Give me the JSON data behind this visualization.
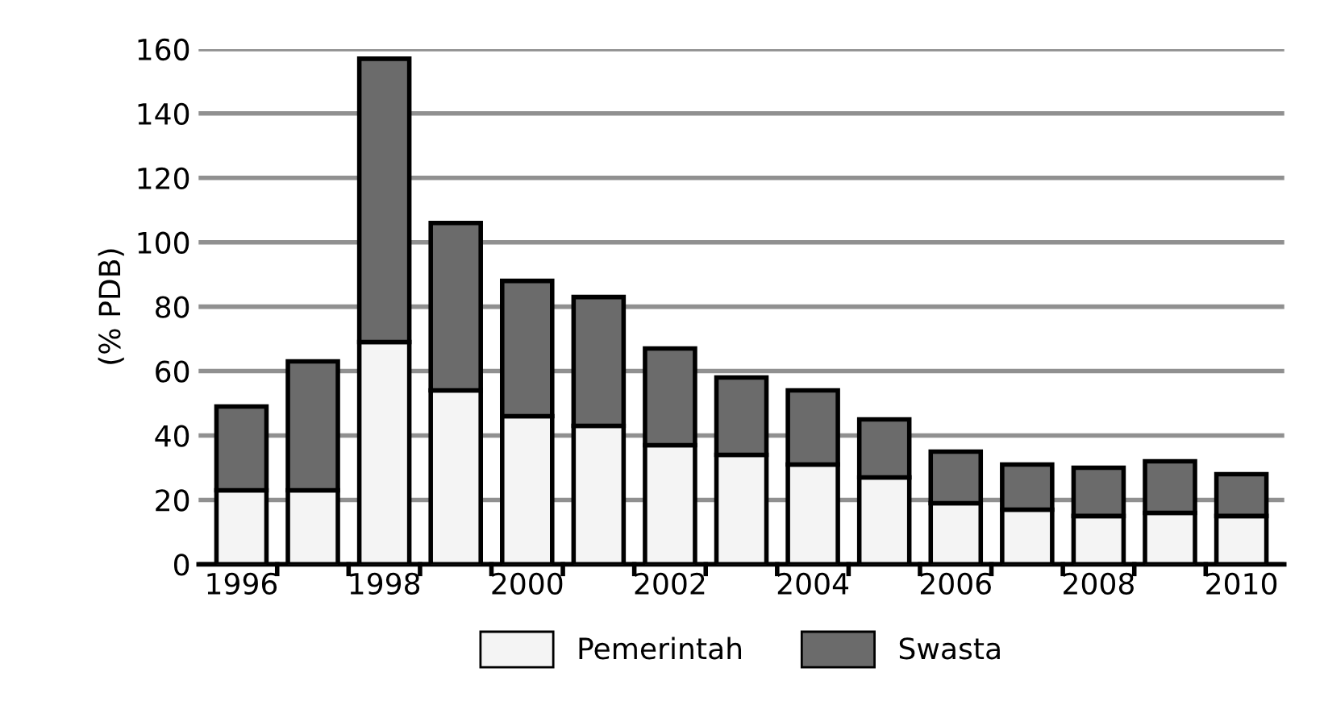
{
  "chart_data": {
    "type": "bar",
    "stacked": true,
    "ylabel": "(% PDB)",
    "categories": [
      "1996",
      null,
      "1998",
      null,
      "2000",
      null,
      "2002",
      null,
      "2004",
      null,
      "2006",
      null,
      "2008",
      null,
      "2010"
    ],
    "series": [
      {
        "name": "Pemerintah",
        "color": "#f4f4f4",
        "values": [
          23,
          23,
          69,
          54,
          46,
          43,
          37,
          34,
          31,
          27,
          19,
          17,
          15,
          16,
          15
        ]
      },
      {
        "name": "Swasta",
        "color": "#6b6b6b",
        "values": [
          26,
          40,
          88,
          52,
          42,
          40,
          30,
          24,
          23,
          18,
          16,
          14,
          15,
          16,
          13
        ]
      }
    ],
    "ylim": [
      0,
      160
    ],
    "yticks": [
      0,
      20,
      40,
      60,
      80,
      100,
      120,
      140,
      160
    ],
    "grid": "y",
    "legend": "bottom"
  }
}
